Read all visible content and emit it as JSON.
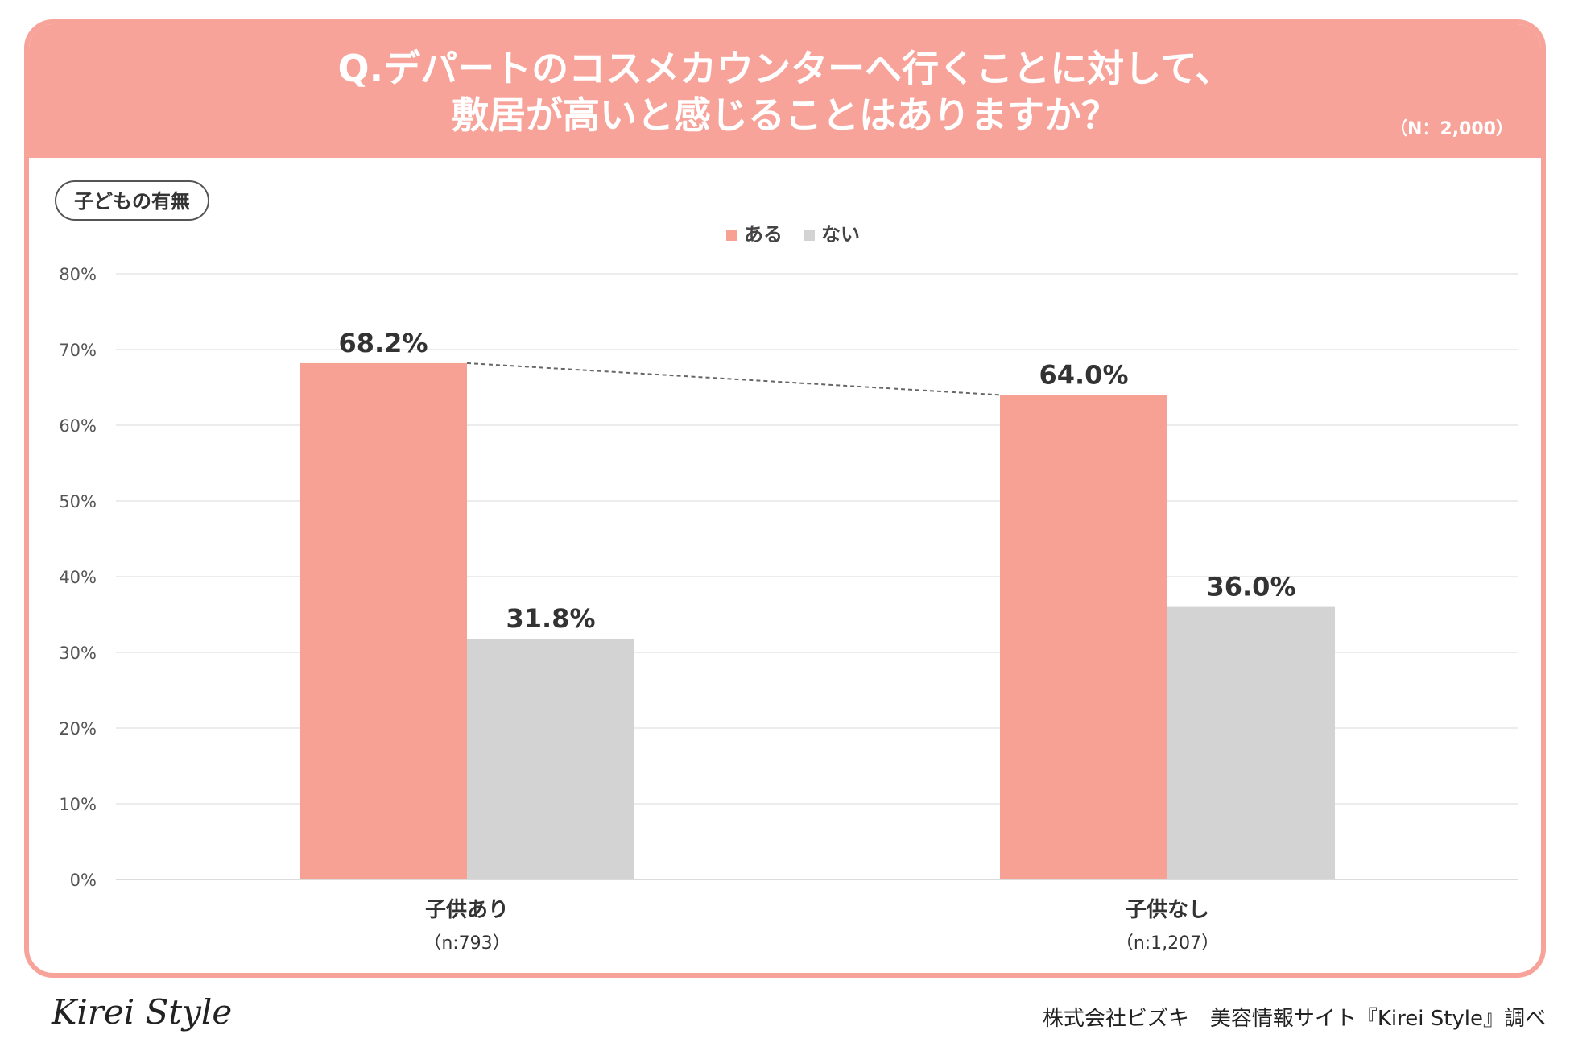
{
  "header": {
    "title_line1": "Q.デパートのコスメカウンターへ行くことに対して、",
    "title_line2": "敷居が高いと感じることはありますか？",
    "sample_size": "（N：2,000）"
  },
  "tag": "子どもの有無",
  "footer": {
    "logo": "Kirei Style",
    "credit": "株式会社ビズキ　美容情報サイト『Kirei Style』調べ"
  },
  "chart_data": {
    "type": "bar",
    "categories": [
      "子供あり",
      "子供なし"
    ],
    "category_notes": [
      "（n:793）",
      "（n:1,207）"
    ],
    "series": [
      {
        "name": "ある",
        "values": [
          68.2,
          64.0
        ],
        "color": "#f7a194"
      },
      {
        "name": "ない",
        "values": [
          31.8,
          36.0
        ],
        "color": "#d3d3d3"
      }
    ],
    "data_labels": [
      [
        "68.2%",
        "64.0%"
      ],
      [
        "31.8%",
        "36.0%"
      ]
    ],
    "y_ticks": [
      "0%",
      "10%",
      "20%",
      "30%",
      "40%",
      "50%",
      "60%",
      "70%",
      "80%"
    ],
    "ylim": [
      0,
      80
    ],
    "grid": true,
    "legend_position": "top-center",
    "connector_line": "dashed line joining the tops of the ある bars"
  }
}
